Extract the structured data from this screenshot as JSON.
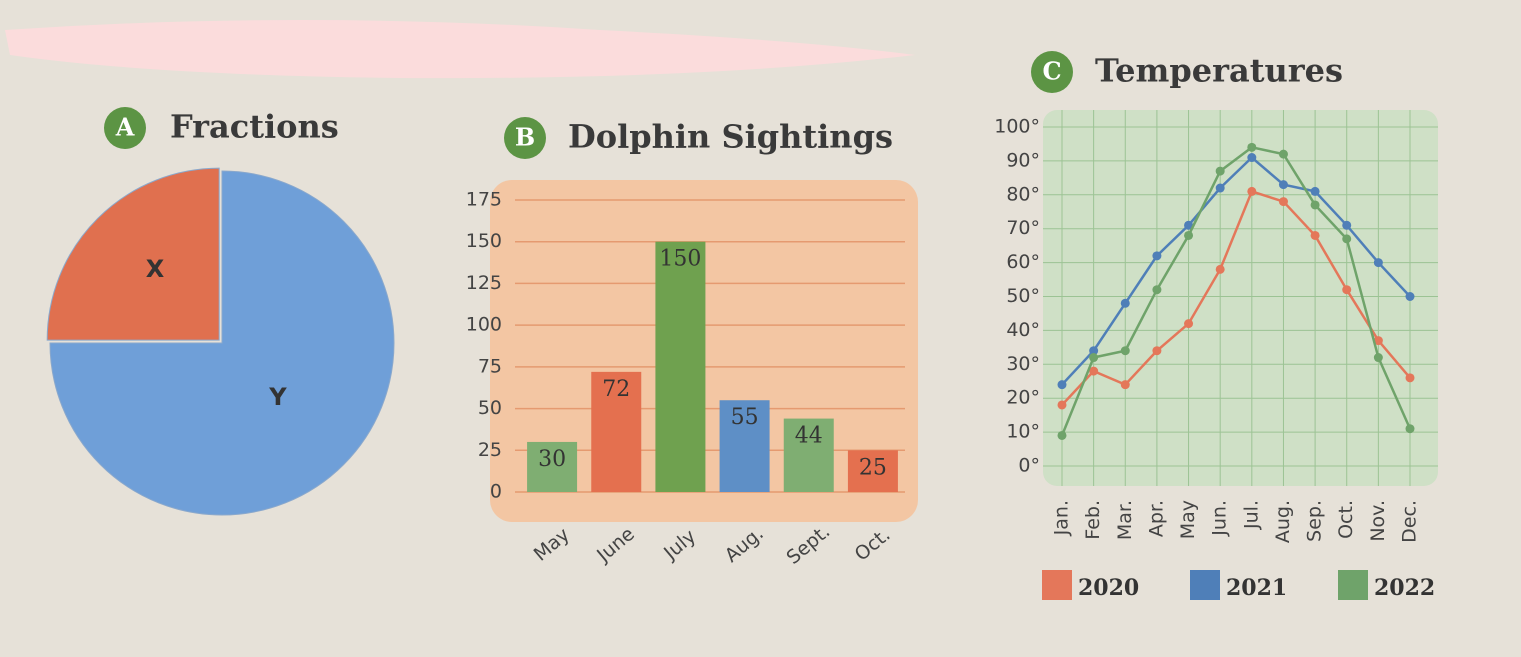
{
  "chart_data": [
    {
      "type": "pie",
      "badge": "A",
      "title": "Fractions",
      "categories": [
        "X",
        "Y"
      ],
      "values": [
        25,
        75
      ],
      "colors": [
        "#e0704f",
        "#6f9fd8"
      ]
    },
    {
      "type": "bar",
      "badge": "B",
      "title": "Dolphin Sightings",
      "categories": [
        "May",
        "June",
        "July",
        "Aug.",
        "Sept.",
        "Oct."
      ],
      "values": [
        30,
        72,
        150,
        55,
        44,
        25
      ],
      "colors": [
        "#7fae72",
        "#e4704f",
        "#6fa14f",
        "#5e8fc6",
        "#7fae72",
        "#e4704f"
      ],
      "ylim": [
        0,
        175
      ],
      "yticks": [
        0,
        25,
        50,
        75,
        100,
        125,
        150,
        175
      ],
      "grid": true
    },
    {
      "type": "line",
      "badge": "C",
      "title": "Temperatures",
      "categories": [
        "Jan.",
        "Feb.",
        "Mar.",
        "Apr.",
        "May",
        "Jun.",
        "Jul.",
        "Aug.",
        "Sep.",
        "Oct.",
        "Nov.",
        "Dec."
      ],
      "series": [
        {
          "name": "2020",
          "color": "#e4775a",
          "values": [
            18,
            28,
            24,
            34,
            42,
            58,
            81,
            78,
            68,
            52,
            37,
            26
          ]
        },
        {
          "name": "2021",
          "color": "#4f7fb8",
          "values": [
            24,
            34,
            48,
            62,
            71,
            82,
            91,
            83,
            81,
            71,
            60,
            50
          ]
        },
        {
          "name": "2022",
          "color": "#6fa36a",
          "values": [
            9,
            32,
            34,
            52,
            68,
            87,
            94,
            92,
            77,
            67,
            32,
            11
          ]
        }
      ],
      "ylim": [
        0,
        100
      ],
      "yticks": [
        {
          "value": 0,
          "label": "0°"
        },
        {
          "value": 10,
          "label": "10°"
        },
        {
          "value": 20,
          "label": "20°"
        },
        {
          "value": 30,
          "label": "30°"
        },
        {
          "value": 40,
          "label": "40°"
        },
        {
          "value": 50,
          "label": "50°"
        },
        {
          "value": 60,
          "label": "60°"
        },
        {
          "value": 70,
          "label": "70°"
        },
        {
          "value": 80,
          "label": "80°"
        },
        {
          "value": 90,
          "label": "90°"
        },
        {
          "value": 100,
          "label": "100°"
        }
      ],
      "grid": true
    }
  ]
}
